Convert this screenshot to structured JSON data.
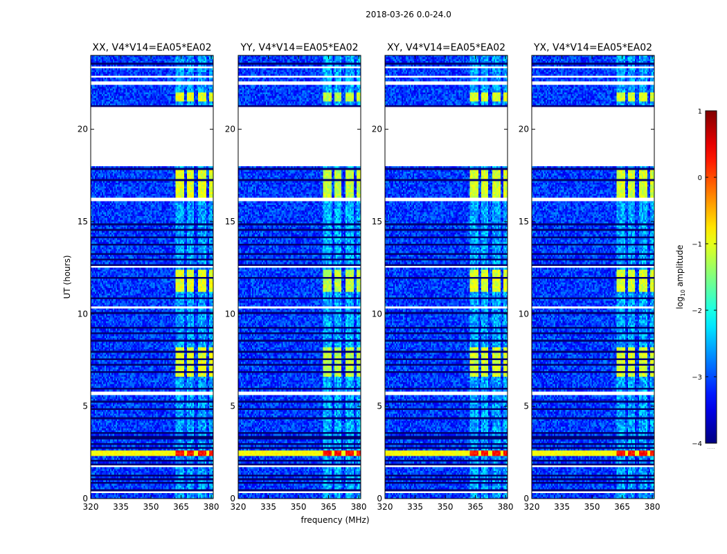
{
  "figure": {
    "suptitle": "2018-03-26 0.0-24.0",
    "xlabel": "frequency (MHz)",
    "ylabel": "UT (hours)",
    "colorbar": {
      "label_prefix": "log",
      "label_sub": "10",
      "label_suffix": " amplitude",
      "min": -4,
      "max": 1,
      "ticks": [
        -4,
        -3,
        -2,
        -1,
        0,
        1
      ],
      "tick_labels": [
        "−4",
        "−3",
        "−2",
        "−1",
        "0",
        "1"
      ],
      "colormap": "jet",
      "footnote": "....."
    }
  },
  "chart_data": [
    {
      "type": "heatmap",
      "title": "XX, V4*V14=EA05*EA02",
      "xlabel": "frequency (MHz)",
      "ylabel": "UT (hours)",
      "xlim": [
        320,
        381
      ],
      "ylim": [
        0,
        24
      ],
      "xticks": [
        320,
        335,
        350,
        365,
        380
      ],
      "yticks": [
        0,
        5,
        10,
        15,
        20
      ],
      "intensity_scale": 0.85,
      "baseline_log_amplitude": -3.1
    },
    {
      "type": "heatmap",
      "title": "YY, V4*V14=EA05*EA02",
      "xlabel": "",
      "ylabel": "",
      "xlim": [
        320,
        381
      ],
      "ylim": [
        0,
        24
      ],
      "xticks": [
        320,
        335,
        350,
        365,
        380
      ],
      "yticks": [
        0,
        5,
        10,
        15,
        20
      ],
      "intensity_scale": 1.0,
      "baseline_log_amplitude": -3.1
    },
    {
      "type": "heatmap",
      "title": "XY, V4*V14=EA05*EA02",
      "xlabel": "",
      "ylabel": "",
      "xlim": [
        320,
        381
      ],
      "ylim": [
        0,
        24
      ],
      "xticks": [
        320,
        335,
        350,
        365,
        380
      ],
      "yticks": [
        0,
        5,
        10,
        15,
        20
      ],
      "intensity_scale": 0.9,
      "baseline_log_amplitude": -3.1
    },
    {
      "type": "heatmap",
      "title": "YX, V4*V14=EA05*EA02",
      "xlabel": "",
      "ylabel": "",
      "xlim": [
        320,
        381
      ],
      "ylim": [
        0,
        24
      ],
      "xticks": [
        320,
        335,
        350,
        365,
        380
      ],
      "yticks": [
        0,
        5,
        10,
        15,
        20
      ],
      "intensity_scale": 0.9,
      "baseline_log_amplitude": -3.1
    }
  ],
  "data_features": {
    "rfi_band_mhz": [
      362,
      381
    ],
    "rfi_channels_mhz": [
      [
        362.5,
        366.5
      ],
      [
        368,
        371.5
      ],
      [
        373.5,
        377.5
      ],
      [
        379,
        381
      ]
    ],
    "strong_rfi_hours": [
      [
        2.35,
        2.6
      ],
      [
        6.6,
        8.2
      ],
      [
        11.2,
        12.4
      ],
      [
        21.5,
        22.0
      ],
      [
        16.3,
        17.9
      ]
    ],
    "strong_rfi_peak_log_amplitude": 0.3,
    "medium_rfi_log_amplitude": -1.2,
    "flagged_hour_ranges": [
      [
        18.0,
        21.2
      ],
      [
        16.1,
        16.3
      ],
      [
        22.4,
        22.6
      ],
      [
        22.8,
        22.9
      ],
      [
        23.3,
        23.4
      ],
      [
        12.5,
        12.6
      ],
      [
        5.6,
        5.8
      ],
      [
        10.35,
        10.4
      ],
      [
        1.65,
        1.8
      ],
      [
        0.3,
        0.4
      ]
    ],
    "flag_lines_hours": [
      0.5,
      0.9,
      1.1,
      1.3,
      1.9,
      2.1,
      2.8,
      3.0,
      3.3,
      3.45,
      3.6,
      4.4,
      4.9,
      5.3,
      6.0,
      6.9,
      7.3,
      7.6,
      8.0,
      8.6,
      9.0,
      9.3,
      10.1,
      10.9,
      12.0,
      12.7,
      13.0,
      13.3,
      13.8,
      14.2,
      14.6,
      14.9,
      17.3,
      17.9,
      21.3,
      23.6
    ],
    "baseline_log_amplitude": -3.1
  }
}
